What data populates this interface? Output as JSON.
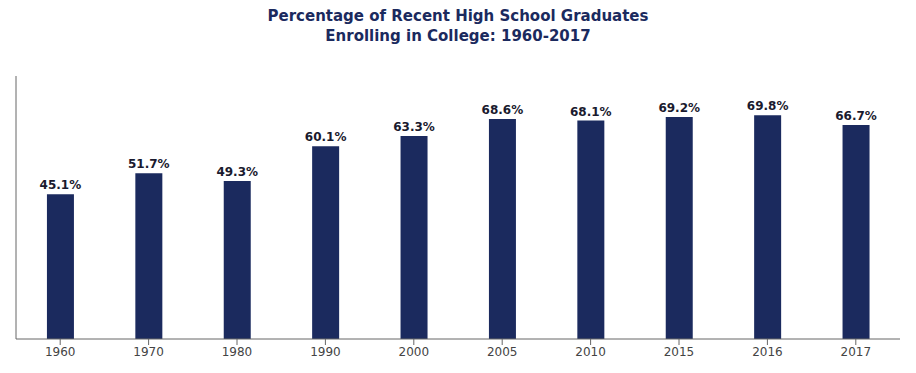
{
  "chart_data": {
    "type": "bar",
    "title": "Percentage of Recent High School Graduates\nEnrolling in College: 1960-2017",
    "categories": [
      "1960",
      "1970",
      "1980",
      "1990",
      "2000",
      "2005",
      "2010",
      "2015",
      "2016",
      "2017"
    ],
    "values": [
      45.1,
      51.7,
      49.3,
      60.1,
      63.3,
      68.6,
      68.1,
      69.2,
      69.8,
      66.7
    ],
    "value_labels": [
      "45.1%",
      "51.7%",
      "49.3%",
      "60.1%",
      "63.3%",
      "68.6%",
      "68.1%",
      "69.2%",
      "69.8%",
      "66.7%"
    ],
    "data_labels": true,
    "color": "#1b2a5e",
    "ylim": [
      0,
      82
    ],
    "grid": false,
    "tick_labels": "x"
  }
}
